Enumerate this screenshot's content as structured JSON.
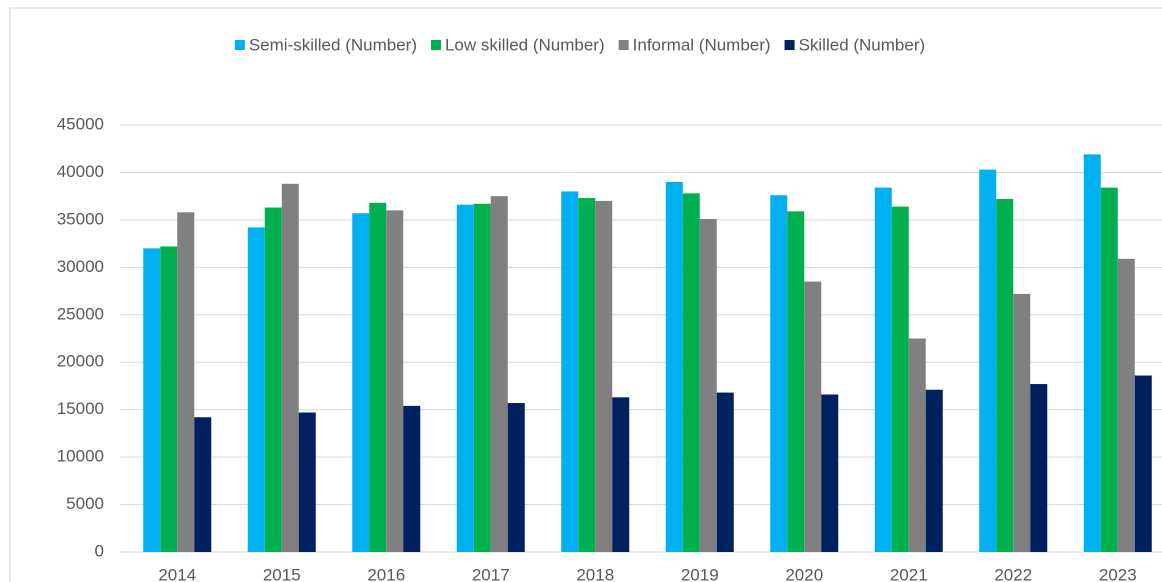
{
  "chart_data": {
    "type": "bar",
    "categories": [
      "2014",
      "2015",
      "2016",
      "2017",
      "2018",
      "2019",
      "2020",
      "2021",
      "2022",
      "2023"
    ],
    "series": [
      {
        "name": "Semi-skilled (Number)",
        "color": "#00b0f0",
        "values": [
          32000,
          34200,
          35700,
          36600,
          38000,
          39000,
          37600,
          38400,
          40300,
          41900
        ]
      },
      {
        "name": "Low skilled (Number)",
        "color": "#00b050",
        "values": [
          32200,
          36300,
          36800,
          36700,
          37300,
          37800,
          35900,
          36400,
          37200,
          38400
        ]
      },
      {
        "name": "Informal (Number)",
        "color": "#808080",
        "values": [
          35800,
          38800,
          36000,
          37500,
          37000,
          35100,
          28500,
          22500,
          27200,
          30900
        ]
      },
      {
        "name": "Skilled (Number)",
        "color": "#002060",
        "values": [
          14200,
          14700,
          15400,
          15700,
          16300,
          16800,
          16600,
          17100,
          17700,
          18600
        ]
      }
    ],
    "ylim": [
      0,
      45000
    ],
    "yticks": [
      0,
      5000,
      10000,
      15000,
      20000,
      25000,
      30000,
      35000,
      40000,
      45000
    ],
    "grid": true,
    "legend": "top"
  }
}
